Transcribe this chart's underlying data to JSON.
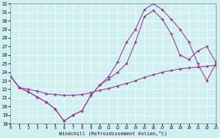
{
  "xlabel": "Windchill (Refroidissement éolien,°C)",
  "background_color": "#cff0f0",
  "line_color": "#993399",
  "grid_color": "#ffffff",
  "xlim": [
    0,
    23
  ],
  "ylim": [
    18,
    32
  ],
  "xticks": [
    0,
    1,
    2,
    3,
    4,
    5,
    6,
    7,
    8,
    9,
    10,
    11,
    12,
    13,
    14,
    15,
    16,
    17,
    18,
    19,
    20,
    21,
    22,
    23
  ],
  "yticks": [
    18,
    19,
    20,
    21,
    22,
    23,
    24,
    25,
    26,
    27,
    28,
    29,
    30,
    31,
    32
  ],
  "line1_x": [
    0,
    1,
    2,
    3,
    4,
    5,
    6,
    7,
    8,
    9,
    10,
    11,
    12,
    13,
    14,
    15,
    16,
    17,
    18,
    19,
    20,
    21,
    22,
    23
  ],
  "line1_y": [
    23.5,
    22.2,
    21.7,
    21.1,
    20.5,
    19.7,
    18.3,
    19.0,
    19.5,
    21.3,
    22.5,
    23.2,
    24.0,
    25.0,
    27.5,
    30.5,
    31.2,
    30.2,
    28.5,
    26.0,
    25.5,
    26.5,
    27.0,
    25.2
  ],
  "line2_x": [
    0,
    1,
    2,
    3,
    4,
    5,
    6,
    7,
    8,
    9,
    10,
    11,
    12,
    13,
    14,
    15,
    16,
    17,
    18,
    19,
    20,
    21,
    22,
    23
  ],
  "line2_y": [
    23.5,
    22.2,
    21.7,
    21.1,
    20.5,
    19.7,
    18.3,
    19.0,
    19.5,
    21.3,
    22.5,
    23.5,
    25.2,
    27.5,
    29.0,
    31.3,
    32.0,
    31.3,
    30.2,
    29.0,
    27.5,
    25.0,
    23.0,
    25.0
  ],
  "line3_x": [
    0,
    1,
    2,
    3,
    4,
    5,
    6,
    7,
    8,
    9,
    10,
    11,
    12,
    13,
    14,
    15,
    16,
    17,
    18,
    19,
    20,
    21,
    22,
    23
  ],
  "line3_y": [
    23.5,
    22.2,
    22.0,
    21.8,
    21.5,
    21.4,
    21.3,
    21.3,
    21.4,
    21.6,
    21.9,
    22.1,
    22.4,
    22.7,
    23.0,
    23.4,
    23.7,
    24.0,
    24.2,
    24.4,
    24.5,
    24.6,
    24.7,
    24.8
  ]
}
